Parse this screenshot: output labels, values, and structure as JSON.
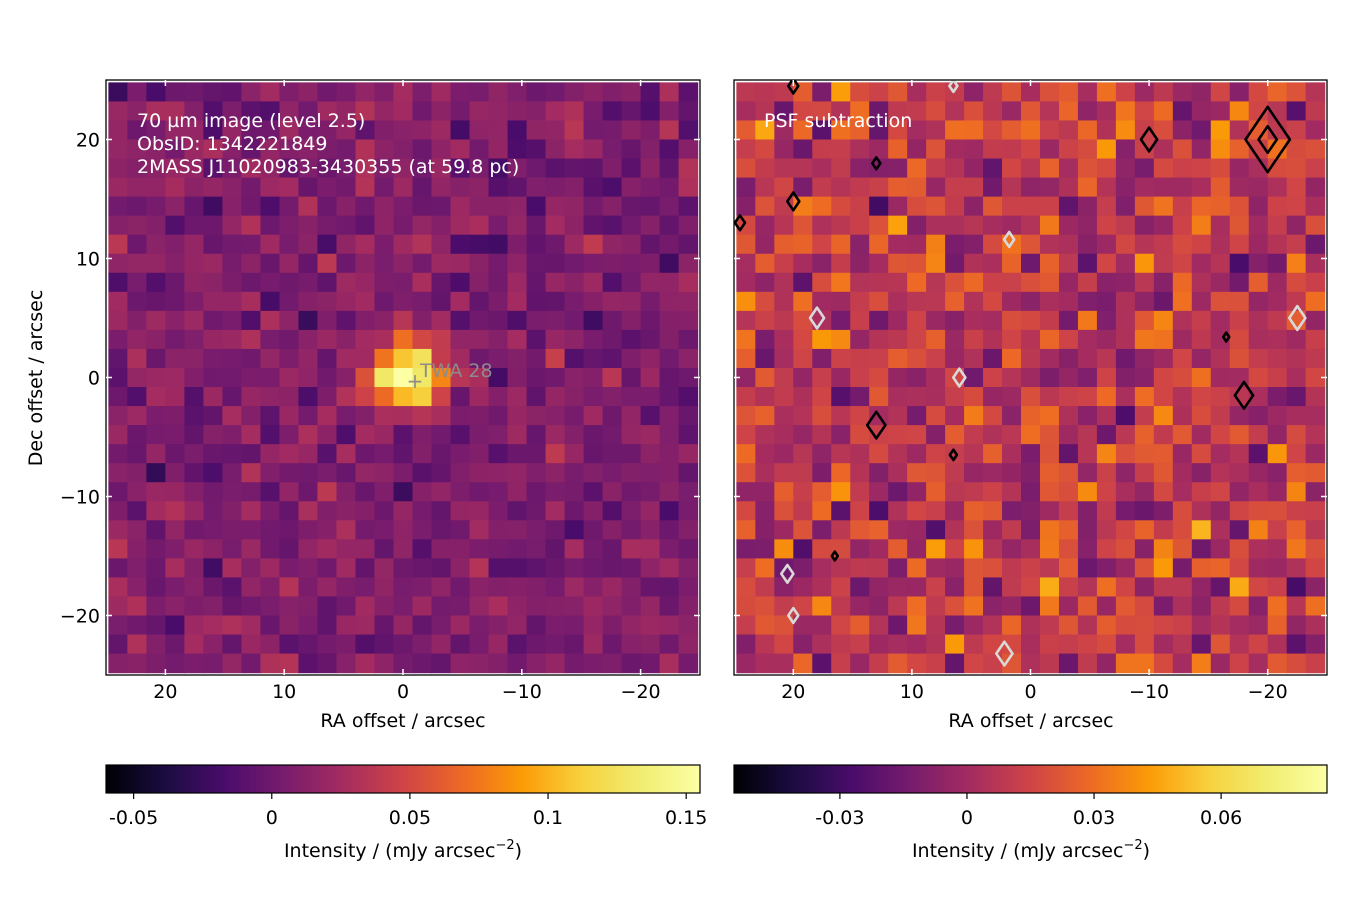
{
  "chart_data": [
    {
      "type": "heatmap",
      "panel": "left",
      "annotation_lines": [
        "70 µm image (level 2.5)",
        "ObsID: 1342221849",
        "2MASS J11020983-3430355 (at 59.8 pc)"
      ],
      "marker": {
        "label": "TWA 28",
        "x": -0.9,
        "y": -0.2,
        "symbol": "+"
      },
      "xlabel": "RA offset / arcsec",
      "ylabel": "Dec offset / arcsec",
      "xlim": [
        25,
        -25
      ],
      "ylim": [
        -25,
        25
      ],
      "xticks": [
        20,
        10,
        0,
        -10,
        -20
      ],
      "xtick_labels": [
        "20",
        "10",
        "0",
        "−10",
        "−20"
      ],
      "yticks": [
        20,
        10,
        0,
        -10,
        -20
      ],
      "ytick_labels": [
        "20",
        "10",
        "0",
        "−10",
        "−20"
      ],
      "grid": false,
      "colormap": "inferno",
      "pixel_size_arcsec": 1.6,
      "grid_size": [
        31,
        31
      ],
      "vmin": -0.06,
      "vmax": 0.155,
      "source_peak": {
        "x": -0.5,
        "y": 0,
        "peak": 0.155
      },
      "colorbar": {
        "label_main": "Intensity / (mJy arcsec",
        "label_sup": "−2",
        "label_end": ")",
        "ticks": [
          -0.05,
          0,
          0.05,
          0.1,
          0.15
        ],
        "tick_labels": [
          "-0.05",
          "0",
          "0.05",
          "0.1",
          "0.15"
        ]
      }
    },
    {
      "type": "heatmap",
      "panel": "right",
      "annotation_lines": [
        "PSF subtraction"
      ],
      "xlabel": "RA offset / arcsec",
      "xlim": [
        25,
        -25
      ],
      "ylim": [
        -25,
        25
      ],
      "xticks": [
        20,
        10,
        0,
        -10,
        -20
      ],
      "xtick_labels": [
        "20",
        "10",
        "0",
        "−10",
        "−20"
      ],
      "grid": false,
      "colormap": "inferno",
      "pixel_size_arcsec": 1.6,
      "grid_size": [
        31,
        31
      ],
      "vmin": -0.055,
      "vmax": 0.085,
      "contours": {
        "positive_color": "#000000",
        "negative_color": "#d9d9d9"
      },
      "colorbar": {
        "label_main": "Intensity / (mJy arcsec",
        "label_sup": "−2",
        "label_end": ")",
        "ticks": [
          -0.03,
          0,
          0.03,
          0.06
        ],
        "tick_labels": [
          "-0.03",
          "0",
          "0.03",
          "0.06"
        ]
      }
    }
  ]
}
